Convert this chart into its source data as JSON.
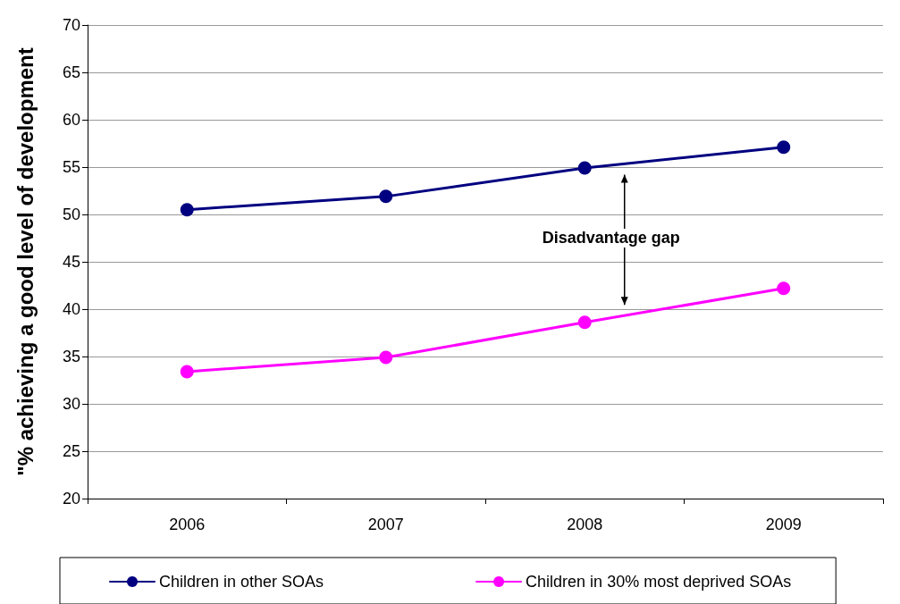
{
  "chart_data": {
    "type": "line",
    "ylabel": "\"% achieving a good level of development",
    "categories": [
      "2006",
      "2007",
      "2008",
      "2009"
    ],
    "series": [
      {
        "name": "Children in other SOAs",
        "color": "#000080",
        "values": [
          50.5,
          51.9,
          54.9,
          57.1
        ]
      },
      {
        "name": "Children in 30% most deprived SOAs",
        "color": "#ff00ff",
        "values": [
          33.4,
          34.9,
          38.6,
          42.2
        ]
      }
    ],
    "ylim": [
      20,
      70
    ],
    "yticks": [
      20,
      25,
      30,
      35,
      40,
      45,
      50,
      55,
      60,
      65,
      70
    ],
    "grid": "y",
    "legend": "bottom",
    "marker": "circle",
    "line_style": "solid",
    "annotations": [
      "Disadvantage gap"
    ]
  }
}
